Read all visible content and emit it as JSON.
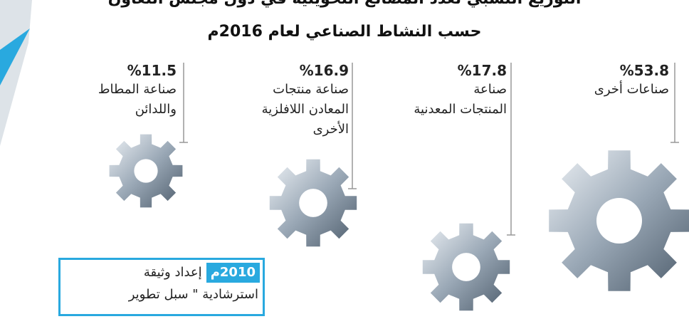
{
  "header": {
    "title_lines": [
      "التوزيع النسبي لعدد المصانع التحويلية في دول مجلس التعاون",
      "حسب النشاط الصناعي لعام 2016م"
    ]
  },
  "items": [
    {
      "percent": "%53.8",
      "label_lines": [
        "صناعات أخرى"
      ]
    },
    {
      "percent": "%17.8",
      "label_lines": [
        "صناعة",
        "المنتجات المعدنية"
      ]
    },
    {
      "percent": "%16.9",
      "label_lines": [
        "صناعة منتجات",
        "المعادن اللافلزية",
        "الأخرى"
      ]
    },
    {
      "percent": "%11.5",
      "label_lines": [
        "صناعة المطاط",
        "واللدائن"
      ]
    }
  ],
  "box": {
    "badge": "2010م",
    "lines": [
      "إعداد وثيقة",
      "استرشادية \" سبل تطوير"
    ]
  }
}
